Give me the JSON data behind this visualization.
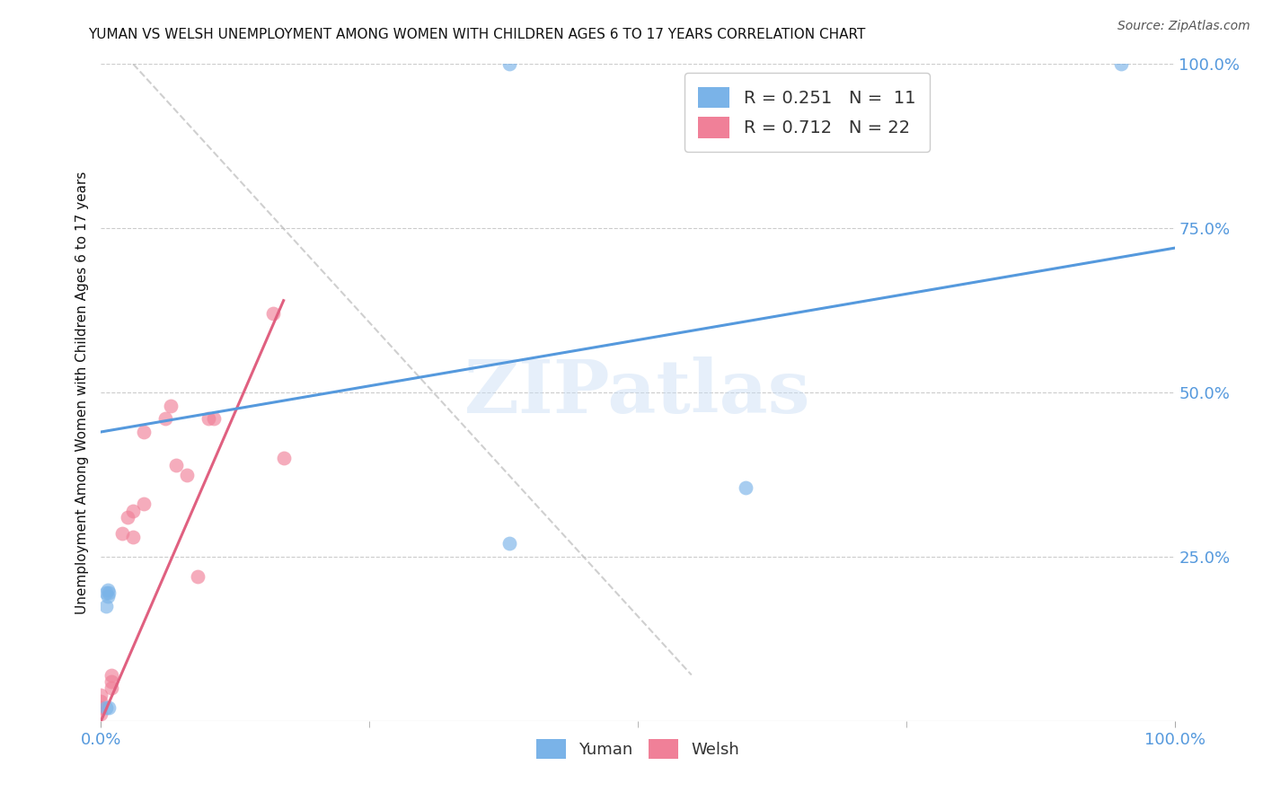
{
  "title": "YUMAN VS WELSH UNEMPLOYMENT AMONG WOMEN WITH CHILDREN AGES 6 TO 17 YEARS CORRELATION CHART",
  "source": "Source: ZipAtlas.com",
  "ylabel": "Unemployment Among Women with Children Ages 6 to 17 years",
  "xlim": [
    0.0,
    1.0
  ],
  "ylim": [
    -0.02,
    1.05
  ],
  "plot_ylim": [
    0.0,
    1.0
  ],
  "xtick_labels": [
    "0.0%",
    "100.0%"
  ],
  "xtick_positions": [
    0.0,
    1.0
  ],
  "ytick_labels": [
    "25.0%",
    "50.0%",
    "75.0%",
    "100.0%"
  ],
  "ytick_positions": [
    0.25,
    0.5,
    0.75,
    1.0
  ],
  "watermark": "ZIPatlas",
  "legend_top_entries": [
    {
      "label": "R = 0.251   N =  11",
      "color": "#a8c8f0"
    },
    {
      "label": "R = 0.712   N = 22",
      "color": "#f0a8b8"
    }
  ],
  "yuman_scatter_x": [
    0.005,
    0.005,
    0.005,
    0.006,
    0.006,
    0.007,
    0.007,
    0.38,
    0.6,
    0.95,
    0.38
  ],
  "yuman_scatter_y": [
    0.02,
    0.175,
    0.195,
    0.19,
    0.2,
    0.195,
    0.02,
    0.27,
    0.355,
    1.0,
    1.0
  ],
  "welsh_scatter_x": [
    0.0,
    0.0,
    0.0,
    0.0,
    0.01,
    0.01,
    0.01,
    0.02,
    0.025,
    0.03,
    0.03,
    0.04,
    0.04,
    0.06,
    0.065,
    0.07,
    0.08,
    0.09,
    0.1,
    0.16,
    0.17,
    0.105
  ],
  "welsh_scatter_y": [
    0.01,
    0.02,
    0.03,
    0.04,
    0.05,
    0.06,
    0.07,
    0.285,
    0.31,
    0.28,
    0.32,
    0.33,
    0.44,
    0.46,
    0.48,
    0.39,
    0.375,
    0.22,
    0.46,
    0.62,
    0.4,
    0.46
  ],
  "yuman_line_x": [
    0.0,
    1.0
  ],
  "yuman_line_y": [
    0.44,
    0.72
  ],
  "welsh_line_x": [
    0.0,
    0.17
  ],
  "welsh_line_y": [
    0.0,
    0.64
  ],
  "diag_line_x": [
    0.03,
    0.55
  ],
  "diag_line_y": [
    1.0,
    0.07
  ],
  "yuman_color": "#7ab3e8",
  "welsh_color": "#f08098",
  "yuman_line_color": "#5599dd",
  "welsh_line_color": "#e06080",
  "scatter_size": 130,
  "background_color": "#ffffff",
  "grid_color": "#cccccc",
  "title_color": "#111111",
  "axis_label_color": "#111111",
  "tick_label_color": "#5599dd"
}
